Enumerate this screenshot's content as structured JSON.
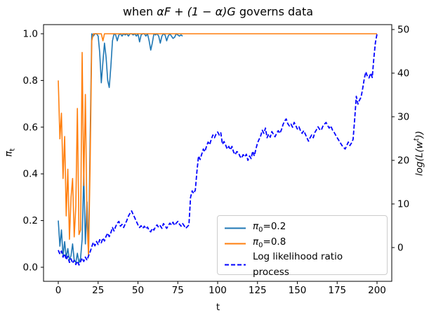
{
  "title": {
    "prefix": "when ",
    "math": "αF + (1 − α)G",
    "suffix": " governs data"
  },
  "axes": {
    "x": {
      "label": "t",
      "tick_labels": [
        "0",
        "25",
        "50",
        "75",
        "100",
        "125",
        "150",
        "175",
        "200"
      ]
    },
    "y_left": {
      "label_sym": "π",
      "label_sub": "t",
      "tick_labels": [
        "0.0",
        "0.2",
        "0.4",
        "0.6",
        "0.8",
        "1.0"
      ]
    },
    "y_right": {
      "label_pre": "log(L(w",
      "label_sup": "t",
      "label_post": "))",
      "tick_labels": [
        "0",
        "10",
        "20",
        "30",
        "40",
        "50"
      ]
    }
  },
  "legend": {
    "location": "lower right",
    "entries": [
      {
        "sym": "π",
        "sub": "0",
        "rest": "=0.2",
        "color": "#1f77b4",
        "style": "solid"
      },
      {
        "sym": "π",
        "sub": "0",
        "rest": "=0.8",
        "color": "#ff7f0e",
        "style": "solid"
      },
      {
        "sym": "",
        "sub": "",
        "rest": "Log likelihood ratio process",
        "color": "#0000ff",
        "style": "dashed"
      }
    ]
  },
  "chart_data": {
    "type": "line",
    "title": "when αF + (1 − α)G governs data",
    "xlabel": "t",
    "ylabel_left": "π_t",
    "ylabel_right": "log(L(w^t))",
    "xlim": [
      0,
      200
    ],
    "ylim_left": [
      0.0,
      1.0
    ],
    "ylim_right": [
      -4,
      50
    ],
    "grid": false,
    "series": [
      {
        "id": "pi0-0.2",
        "name": "π0=0.2",
        "axis": "left",
        "color": "#1f77b4",
        "style": "solid",
        "t_start": 0,
        "values": [
          0.2,
          0.09,
          0.16,
          0.05,
          0.11,
          0.04,
          0.08,
          0.03,
          0.05,
          0.1,
          0.03,
          0.02,
          0.06,
          0.02,
          0.04,
          0.12,
          0.4,
          0.1,
          0.28,
          0.06,
          0.55,
          1.0,
          0.99,
          1.0,
          1.0,
          0.99,
          0.92,
          0.79,
          0.88,
          0.96,
          0.9,
          0.8,
          0.77,
          0.86,
          0.97,
          1.0,
          0.995,
          0.97,
          0.995,
          1.0,
          0.99,
          1.0,
          0.995,
          1.0,
          0.99,
          1.0,
          1.0,
          0.995,
          1.0,
          0.99,
          1.0,
          0.965,
          0.995,
          1.0,
          1.0,
          0.99,
          1.0,
          0.97,
          0.93,
          0.96,
          1.0,
          0.995,
          1.0,
          0.99,
          0.96,
          0.99,
          1.0,
          0.995,
          0.97,
          0.99,
          1.0,
          0.99,
          0.98,
          0.985,
          1.0,
          0.995,
          0.99,
          0.995,
          0.99
        ]
      },
      {
        "id": "pi0-0.8",
        "name": "π0=0.8",
        "axis": "left",
        "color": "#ff7f0e",
        "style": "solid",
        "t_start": 0,
        "values": [
          0.8,
          0.55,
          0.66,
          0.38,
          0.56,
          0.22,
          0.42,
          0.12,
          0.3,
          0.38,
          0.13,
          0.26,
          0.68,
          0.14,
          0.16,
          0.92,
          0.35,
          0.74,
          0.2,
          0.05,
          0.45,
          0.97,
          1.0,
          1.0,
          1.0,
          1.0,
          1.0,
          1.0,
          0.97,
          1.0,
          1.0
        ],
        "tail_value": 1.0,
        "t_end": 200
      },
      {
        "id": "log-likelihood-ratio",
        "name": "Log likelihood ratio process",
        "axis": "right",
        "color": "#0000ff",
        "style": "dashed",
        "t_start": 0,
        "values": [
          -0.6,
          -1.5,
          -0.8,
          -2.2,
          -1.4,
          -2.8,
          -2.0,
          -3.4,
          -2.6,
          -3.6,
          -2.9,
          -3.9,
          -3.1,
          -4.0,
          -3.2,
          -2.4,
          -3.2,
          -2.2,
          -2.9,
          -1.9,
          -1.0,
          0.2,
          1.2,
          0.4,
          1.4,
          0.7,
          1.8,
          1.1,
          2.2,
          1.5,
          2.6,
          3.3,
          2.5,
          3.4,
          4.6,
          3.8,
          4.8,
          5.6,
          6.0,
          4.9,
          5.3,
          4.6,
          5.4,
          6.2,
          7.2,
          7.9,
          8.4,
          7.6,
          6.8,
          6.0,
          5.2,
          4.6,
          5.0,
          4.4,
          4.9,
          4.3,
          4.7,
          3.9,
          3.6,
          4.4,
          4.0,
          4.8,
          5.2,
          4.6,
          5.0,
          4.4,
          5.5,
          5.0,
          4.4,
          5.0,
          5.6,
          5.2,
          5.8,
          5.1,
          5.6,
          6.0,
          5.4,
          4.9,
          5.5,
          5.0,
          4.4,
          4.8,
          5.2,
          11.5,
          13.0,
          12.4,
          13.2,
          17.5,
          21.0,
          20.2,
          21.4,
          22.6,
          22.0,
          23.2,
          24.2,
          23.6,
          24.8,
          25.8,
          25.2,
          26.0,
          26.5,
          25.8,
          26.3,
          23.7,
          24.3,
          23.5,
          22.6,
          23.2,
          22.4,
          23.2,
          21.9,
          21.3,
          22.0,
          21.8,
          20.9,
          20.5,
          21.3,
          20.8,
          21.4,
          20.0,
          21.0,
          20.4,
          22.1,
          21.0,
          22.6,
          24.0,
          24.8,
          25.6,
          26.9,
          26.2,
          27.4,
          25.2,
          26.0,
          25.3,
          26.6,
          26.0,
          25.4,
          26.2,
          26.8,
          26.2,
          27.0,
          28.2,
          29.0,
          29.5,
          28.4,
          27.9,
          28.3,
          27.6,
          28.7,
          28.0,
          27.2,
          27.7,
          26.8,
          26.2,
          26.8,
          26.0,
          25.2,
          24.4,
          25.2,
          25.8,
          25.2,
          26.4,
          27.0,
          27.7,
          27.1,
          26.9,
          27.8,
          28.3,
          28.7,
          28.0,
          27.4,
          27.9,
          27.0,
          26.5,
          25.8,
          25.2,
          24.6,
          24.0,
          23.4,
          23.0,
          22.6,
          23.4,
          24.2,
          23.4,
          24.0,
          24.8,
          29.5,
          34.7,
          32.9,
          33.8,
          34.5,
          36.5,
          38.7,
          40.3,
          39.2,
          38.9,
          40.0,
          39.0,
          43.5,
          47.0,
          49.0
        ]
      }
    ]
  }
}
